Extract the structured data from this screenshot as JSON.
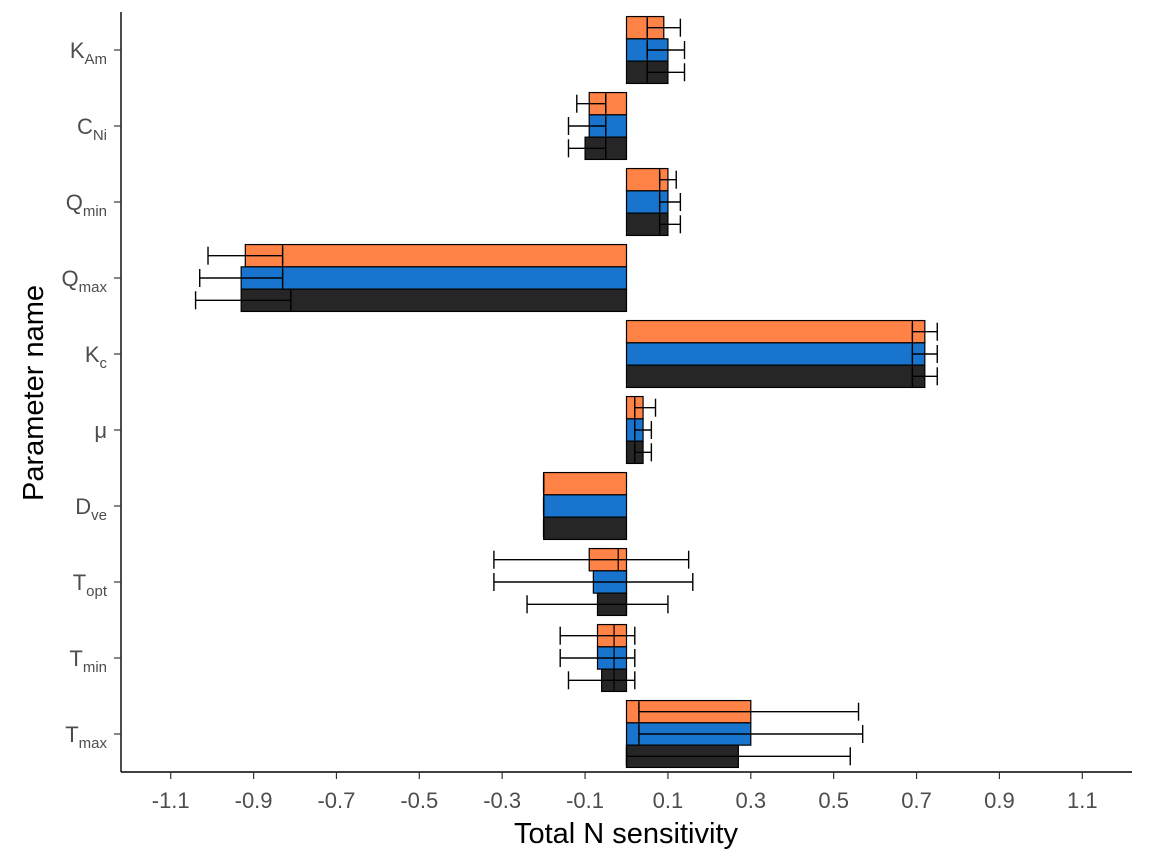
{
  "chart_data": {
    "type": "bar",
    "orientation": "horizontal",
    "xlabel": "Total N sensitivity",
    "ylabel": "Parameter name",
    "xlim": [
      -1.22,
      1.22
    ],
    "xticks": [
      -1.1,
      -0.9,
      -0.7,
      -0.5,
      -0.3,
      -0.1,
      0.1,
      0.3,
      0.5,
      0.7,
      0.9,
      1.1
    ],
    "xtick_labels": [
      "-1.1",
      "-0.9",
      "-0.7",
      "-0.5",
      "-0.3",
      "-0.1",
      "0.1",
      "0.3",
      "0.5",
      "0.7",
      "0.9",
      "1.1"
    ],
    "grid": false,
    "legend": "none",
    "categories": [
      {
        "base": "K",
        "sub": "Am"
      },
      {
        "base": "C",
        "sub": "Ni"
      },
      {
        "base": "Q",
        "sub": "min"
      },
      {
        "base": "Q",
        "sub": "max"
      },
      {
        "base": "K",
        "sub": "c"
      },
      {
        "base": "μ",
        "sub": ""
      },
      {
        "base": "D",
        "sub": "ve"
      },
      {
        "base": "T",
        "sub": "opt"
      },
      {
        "base": "T",
        "sub": "min"
      },
      {
        "base": "T",
        "sub": "max"
      }
    ],
    "series": [
      {
        "color": "#FF8247",
        "values": [
          0.09,
          -0.09,
          0.1,
          -0.92,
          0.72,
          0.04,
          -0.2,
          -0.09,
          -0.07,
          0.3
        ],
        "mid": [
          0.05,
          -0.05,
          0.08,
          -0.83,
          0.69,
          0.02,
          -0.2,
          -0.02,
          -0.03,
          0.03
        ],
        "err_low": [
          0.05,
          -0.12,
          0.08,
          -1.01,
          0.69,
          0.02,
          -0.2,
          -0.32,
          -0.16,
          0.03
        ],
        "err_high": [
          0.13,
          -0.05,
          0.12,
          -0.83,
          0.75,
          0.07,
          -0.2,
          0.15,
          0.02,
          0.56
        ]
      },
      {
        "color": "#1874CD",
        "values": [
          0.1,
          -0.09,
          0.1,
          -0.93,
          0.72,
          0.04,
          -0.2,
          -0.08,
          -0.07,
          0.3
        ],
        "mid": [
          0.05,
          -0.05,
          0.08,
          -0.83,
          0.69,
          0.02,
          -0.2,
          0.0,
          -0.03,
          0.03
        ],
        "err_low": [
          0.05,
          -0.14,
          0.08,
          -1.03,
          0.69,
          0.02,
          -0.2,
          -0.32,
          -0.16,
          0.03
        ],
        "err_high": [
          0.14,
          -0.05,
          0.13,
          -0.83,
          0.75,
          0.06,
          -0.2,
          0.16,
          0.02,
          0.57
        ]
      },
      {
        "color": "#262626",
        "values": [
          0.1,
          -0.1,
          0.1,
          -0.93,
          0.72,
          0.04,
          -0.2,
          -0.07,
          -0.06,
          0.27
        ],
        "mid": [
          0.05,
          -0.05,
          0.08,
          -0.81,
          0.69,
          0.02,
          -0.2,
          0.0,
          -0.03,
          0.0
        ],
        "err_low": [
          0.05,
          -0.14,
          0.08,
          -1.04,
          0.69,
          0.02,
          -0.2,
          -0.24,
          -0.14,
          0.0
        ],
        "err_high": [
          0.14,
          -0.05,
          0.13,
          -0.81,
          0.75,
          0.06,
          -0.2,
          0.1,
          0.02,
          0.54
        ]
      }
    ]
  }
}
